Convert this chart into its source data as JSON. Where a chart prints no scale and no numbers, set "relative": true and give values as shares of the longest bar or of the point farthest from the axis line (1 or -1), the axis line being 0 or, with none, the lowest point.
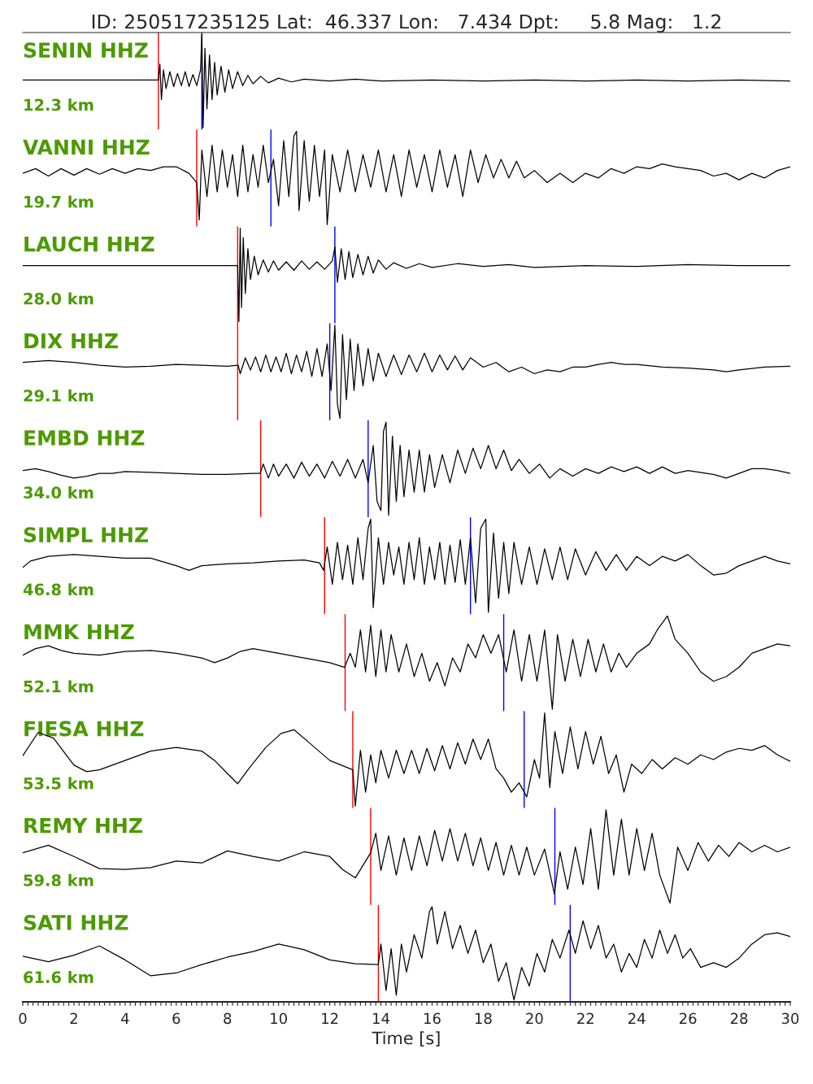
{
  "chart_data": [
    {
      "type": "line",
      "title": "ID: 250517235125 Lat:  46.337 Lon:   7.434 Dpt:     5.8 Mag:   1.2",
      "relative": true,
      "color": "#000000",
      "xlim": [
        0,
        30
      ],
      "tick_labels": false,
      "annotations": [
        "SENIN HHZ",
        "12.3 km"
      ],
      "ref_lines": [
        {
          "axis": "x",
          "value": 5.3,
          "color": "#ff0000"
        },
        {
          "axis": "x",
          "value": 7.0,
          "color": "#0000ff"
        }
      ],
      "x": [
        0,
        5.3,
        5.36,
        5.42,
        5.5,
        5.6,
        5.75,
        5.9,
        6.05,
        6.2,
        6.35,
        6.5,
        6.65,
        6.8,
        6.95,
        7.0,
        7.05,
        7.12,
        7.2,
        7.3,
        7.4,
        7.5,
        7.6,
        7.75,
        7.9,
        8.05,
        8.2,
        8.4,
        8.6,
        8.8,
        9.0,
        9.3,
        9.6,
        10,
        10.5,
        11,
        12,
        13,
        14,
        16,
        18,
        20,
        22,
        24,
        26,
        28,
        30
      ],
      "values": [
        0.51,
        0.51,
        0.68,
        0.3,
        0.62,
        0.42,
        0.6,
        0.44,
        0.58,
        0.45,
        0.6,
        0.44,
        0.57,
        0.45,
        0.62,
        1.0,
        0.0,
        0.85,
        0.2,
        0.78,
        0.3,
        0.7,
        0.35,
        0.66,
        0.38,
        0.62,
        0.42,
        0.6,
        0.45,
        0.56,
        0.47,
        0.55,
        0.48,
        0.53,
        0.49,
        0.52,
        0.5,
        0.52,
        0.5,
        0.51,
        0.5,
        0.51,
        0.5,
        0.51,
        0.5,
        0.51,
        0.5
      ]
    },
    {
      "type": "line",
      "relative": true,
      "color": "#000000",
      "xlim": [
        0,
        30
      ],
      "tick_labels": false,
      "annotations": [
        "VANNI HHZ",
        "19.7 km"
      ],
      "ref_lines": [
        {
          "axis": "x",
          "value": 6.8,
          "color": "#ff0000"
        },
        {
          "axis": "x",
          "value": 9.7,
          "color": "#0000ff"
        }
      ],
      "x": [
        0,
        0.5,
        1,
        1.5,
        2,
        2.5,
        3,
        3.5,
        4,
        4.5,
        5,
        5.5,
        6,
        6.5,
        6.8,
        6.9,
        7.0,
        7.2,
        7.4,
        7.6,
        7.8,
        8.0,
        8.2,
        8.4,
        8.6,
        8.8,
        9.0,
        9.2,
        9.4,
        9.6,
        9.8,
        10.0,
        10.2,
        10.4,
        10.6,
        10.7,
        10.8,
        11.0,
        11.2,
        11.4,
        11.6,
        11.8,
        11.9,
        12.1,
        12.4,
        12.7,
        13.0,
        13.3,
        13.6,
        13.9,
        14.2,
        14.5,
        14.8,
        15.1,
        15.4,
        15.7,
        16.0,
        16.3,
        16.6,
        16.9,
        17.2,
        17.5,
        17.8,
        18.1,
        18.4,
        18.7,
        19,
        19.3,
        19.6,
        20,
        20.5,
        21,
        21.5,
        22,
        22.5,
        23,
        23.5,
        24,
        24.5,
        25,
        25.5,
        26,
        26.5,
        27,
        27.5,
        28,
        28.5,
        29,
        29.5,
        30
      ],
      "values": [
        0.55,
        0.6,
        0.52,
        0.6,
        0.53,
        0.6,
        0.54,
        0.6,
        0.55,
        0.6,
        0.58,
        0.62,
        0.62,
        0.55,
        0.45,
        0.05,
        0.8,
        0.3,
        0.85,
        0.35,
        0.8,
        0.4,
        0.75,
        0.3,
        0.85,
        0.35,
        0.75,
        0.4,
        0.85,
        0.45,
        0.7,
        0.2,
        0.9,
        0.3,
        0.95,
        1.0,
        0.15,
        0.9,
        0.25,
        0.85,
        0.3,
        0.8,
        0.0,
        0.75,
        0.35,
        0.8,
        0.35,
        0.75,
        0.4,
        0.8,
        0.35,
        0.75,
        0.3,
        0.8,
        0.4,
        0.75,
        0.35,
        0.8,
        0.4,
        0.75,
        0.3,
        0.8,
        0.45,
        0.75,
        0.5,
        0.7,
        0.5,
        0.68,
        0.5,
        0.58,
        0.45,
        0.55,
        0.45,
        0.55,
        0.5,
        0.6,
        0.55,
        0.62,
        0.6,
        0.65,
        0.62,
        0.6,
        0.58,
        0.52,
        0.55,
        0.48,
        0.55,
        0.5,
        0.58,
        0.62
      ]
    },
    {
      "type": "line",
      "relative": true,
      "color": "#000000",
      "xlim": [
        0,
        30
      ],
      "tick_labels": false,
      "annotations": [
        "LAUCH HHZ",
        "28.0 km"
      ],
      "ref_lines": [
        {
          "axis": "x",
          "value": 8.4,
          "color": "#ff0000"
        },
        {
          "axis": "x",
          "value": 12.2,
          "color": "#0000ff"
        }
      ],
      "x": [
        0,
        8.4,
        8.45,
        8.5,
        8.55,
        8.62,
        8.7,
        8.8,
        8.9,
        9.05,
        9.2,
        9.4,
        9.6,
        9.8,
        10,
        10.3,
        10.6,
        10.9,
        11.2,
        11.5,
        11.8,
        12.1,
        12.2,
        12.3,
        12.45,
        12.6,
        12.75,
        12.9,
        13.1,
        13.3,
        13.5,
        13.7,
        13.9,
        14.2,
        14.5,
        15,
        15.5,
        16,
        17,
        18,
        19,
        20,
        22,
        24,
        26,
        28,
        30
      ],
      "values": [
        0.6,
        0.6,
        0.0,
        1.0,
        0.15,
        0.9,
        0.3,
        0.78,
        0.45,
        0.7,
        0.5,
        0.66,
        0.53,
        0.65,
        0.55,
        0.64,
        0.55,
        0.65,
        0.56,
        0.64,
        0.56,
        0.65,
        0.8,
        0.42,
        0.78,
        0.45,
        0.75,
        0.47,
        0.72,
        0.5,
        0.7,
        0.52,
        0.66,
        0.56,
        0.63,
        0.57,
        0.62,
        0.58,
        0.62,
        0.59,
        0.61,
        0.58,
        0.6,
        0.59,
        0.61,
        0.6,
        0.6
      ]
    },
    {
      "type": "line",
      "relative": true,
      "color": "#000000",
      "xlim": [
        0,
        30
      ],
      "tick_labels": false,
      "annotations": [
        "DIX HHZ",
        "29.1 km"
      ],
      "ref_lines": [
        {
          "axis": "x",
          "value": 8.4,
          "color": "#ff0000"
        },
        {
          "axis": "x",
          "value": 12.0,
          "color": "#0000ff"
        }
      ],
      "x": [
        0,
        1,
        2,
        3,
        4,
        5,
        6,
        7,
        8,
        8.42,
        8.5,
        8.7,
        8.9,
        9.1,
        9.3,
        9.5,
        9.7,
        9.9,
        10.1,
        10.3,
        10.5,
        10.7,
        10.9,
        11.1,
        11.3,
        11.5,
        11.7,
        11.9,
        12.05,
        12.2,
        12.3,
        12.4,
        12.5,
        12.65,
        12.8,
        12.95,
        13.1,
        13.3,
        13.5,
        13.7,
        13.9,
        14.2,
        14.5,
        14.8,
        15.1,
        15.4,
        15.7,
        16,
        16.3,
        16.6,
        16.9,
        17.2,
        17.5,
        18,
        18.5,
        19,
        19.5,
        20,
        20.5,
        21,
        21.5,
        22,
        22.5,
        23,
        23.5,
        24,
        25,
        26,
        27,
        27.5,
        28,
        29,
        30
      ],
      "values": [
        0.6,
        0.62,
        0.6,
        0.57,
        0.55,
        0.56,
        0.58,
        0.57,
        0.56,
        0.57,
        0.48,
        0.65,
        0.52,
        0.66,
        0.5,
        0.68,
        0.5,
        0.66,
        0.5,
        0.7,
        0.48,
        0.68,
        0.5,
        0.72,
        0.45,
        0.75,
        0.45,
        0.8,
        0.3,
        1.0,
        0.15,
        0.0,
        0.9,
        0.2,
        0.85,
        0.3,
        0.8,
        0.35,
        0.75,
        0.4,
        0.7,
        0.45,
        0.68,
        0.47,
        0.68,
        0.5,
        0.7,
        0.5,
        0.68,
        0.52,
        0.67,
        0.52,
        0.65,
        0.55,
        0.6,
        0.5,
        0.55,
        0.48,
        0.52,
        0.5,
        0.55,
        0.55,
        0.58,
        0.6,
        0.58,
        0.58,
        0.55,
        0.54,
        0.52,
        0.5,
        0.52,
        0.55,
        0.56
      ]
    },
    {
      "type": "line",
      "relative": true,
      "color": "#000000",
      "xlim": [
        0,
        30
      ],
      "tick_labels": false,
      "annotations": [
        "EMBD HHZ",
        "34.0 km"
      ],
      "ref_lines": [
        {
          "axis": "x",
          "value": 9.3,
          "color": "#ff0000"
        },
        {
          "axis": "x",
          "value": 13.5,
          "color": "#0000ff"
        }
      ],
      "x": [
        0,
        0.5,
        1,
        1.5,
        2,
        2.5,
        3,
        3.5,
        4,
        5,
        6,
        7,
        8,
        9,
        9.28,
        9.4,
        9.6,
        9.8,
        10,
        10.3,
        10.6,
        10.9,
        11.2,
        11.5,
        11.8,
        12.1,
        12.4,
        12.7,
        13.0,
        13.3,
        13.5,
        13.7,
        13.85,
        14.0,
        14.1,
        14.2,
        14.3,
        14.45,
        14.6,
        14.75,
        14.9,
        15.1,
        15.3,
        15.5,
        15.7,
        15.9,
        16.1,
        16.4,
        16.7,
        17.0,
        17.3,
        17.6,
        17.9,
        18.2,
        18.5,
        18.8,
        19.1,
        19.4,
        19.8,
        20.2,
        20.6,
        21,
        21.5,
        22,
        22.5,
        23,
        23.5,
        24,
        24.5,
        25,
        25.5,
        26,
        27,
        27.5,
        28,
        28.5,
        29,
        29.5,
        30
      ],
      "values": [
        0.48,
        0.5,
        0.47,
        0.43,
        0.4,
        0.42,
        0.45,
        0.45,
        0.47,
        0.46,
        0.45,
        0.44,
        0.44,
        0.45,
        0.45,
        0.55,
        0.4,
        0.55,
        0.42,
        0.55,
        0.4,
        0.57,
        0.42,
        0.55,
        0.4,
        0.58,
        0.42,
        0.6,
        0.4,
        0.6,
        0.35,
        0.75,
        0.15,
        0.05,
        0.9,
        1.0,
        0.0,
        0.85,
        0.15,
        0.75,
        0.2,
        0.7,
        0.25,
        0.7,
        0.25,
        0.65,
        0.3,
        0.65,
        0.35,
        0.7,
        0.45,
        0.72,
        0.5,
        0.75,
        0.5,
        0.7,
        0.48,
        0.6,
        0.45,
        0.55,
        0.4,
        0.5,
        0.42,
        0.5,
        0.45,
        0.52,
        0.47,
        0.52,
        0.45,
        0.52,
        0.45,
        0.48,
        0.44,
        0.4,
        0.45,
        0.5,
        0.5,
        0.48,
        0.45
      ]
    },
    {
      "type": "line",
      "relative": true,
      "color": "#000000",
      "xlim": [
        0,
        30
      ],
      "tick_labels": false,
      "annotations": [
        "SIMPL HHZ",
        "46.8 km"
      ],
      "ref_lines": [
        {
          "axis": "x",
          "value": 11.8,
          "color": "#ff0000"
        },
        {
          "axis": "x",
          "value": 17.5,
          "color": "#0000ff"
        }
      ],
      "x": [
        0,
        0.3,
        1,
        2,
        3,
        4,
        5,
        6,
        6.5,
        7,
        8,
        9,
        10,
        11,
        11.6,
        11.76,
        11.9,
        12.1,
        12.3,
        12.5,
        12.7,
        12.9,
        13.1,
        13.3,
        13.5,
        13.6,
        13.7,
        13.9,
        14.1,
        14.3,
        14.5,
        14.7,
        14.9,
        15.1,
        15.3,
        15.5,
        15.7,
        15.9,
        16.1,
        16.3,
        16.5,
        16.7,
        16.9,
        17.1,
        17.3,
        17.5,
        17.7,
        17.9,
        18.1,
        18.2,
        18.4,
        18.6,
        18.8,
        19.0,
        19.2,
        19.5,
        19.8,
        20.1,
        20.4,
        20.7,
        21,
        21.3,
        21.6,
        22,
        22.4,
        22.8,
        23.2,
        23.6,
        24,
        24.5,
        25,
        25.5,
        26,
        26.5,
        27,
        27.5,
        28,
        28.5,
        29,
        29.5,
        30
      ],
      "values": [
        0.48,
        0.55,
        0.6,
        0.62,
        0.6,
        0.58,
        0.58,
        0.5,
        0.45,
        0.5,
        0.52,
        0.53,
        0.55,
        0.56,
        0.53,
        0.45,
        0.7,
        0.3,
        0.75,
        0.35,
        0.72,
        0.3,
        0.8,
        0.35,
        0.9,
        1.0,
        0.05,
        0.8,
        0.3,
        0.75,
        0.4,
        0.7,
        0.3,
        0.75,
        0.35,
        0.8,
        0.3,
        0.7,
        0.35,
        0.75,
        0.3,
        0.72,
        0.32,
        0.78,
        0.3,
        0.8,
        0.1,
        0.9,
        1.0,
        0.0,
        0.85,
        0.15,
        0.75,
        0.2,
        0.75,
        0.3,
        0.7,
        0.3,
        0.68,
        0.35,
        0.7,
        0.35,
        0.68,
        0.4,
        0.65,
        0.45,
        0.62,
        0.45,
        0.6,
        0.5,
        0.6,
        0.55,
        0.62,
        0.5,
        0.4,
        0.42,
        0.5,
        0.55,
        0.6,
        0.55,
        0.52
      ]
    },
    {
      "type": "line",
      "relative": true,
      "color": "#000000",
      "xlim": [
        0,
        30
      ],
      "tick_labels": false,
      "annotations": [
        "MMK HHZ",
        "52.1 km"
      ],
      "ref_lines": [
        {
          "axis": "x",
          "value": 12.6,
          "color": "#ff0000"
        },
        {
          "axis": "x",
          "value": 18.8,
          "color": "#0000ff"
        }
      ],
      "x": [
        0,
        0.5,
        1,
        1.5,
        2,
        3,
        4,
        5,
        6,
        7,
        7.5,
        8,
        8.5,
        9,
        10,
        11,
        12,
        12.58,
        12.8,
        13,
        13.2,
        13.4,
        13.6,
        13.8,
        14,
        14.2,
        14.4,
        14.7,
        15,
        15.3,
        15.6,
        15.9,
        16.2,
        16.5,
        16.8,
        17.1,
        17.4,
        17.7,
        18,
        18.3,
        18.6,
        18.9,
        19.2,
        19.5,
        19.8,
        20.1,
        20.4,
        20.7,
        20.9,
        21.2,
        21.5,
        21.8,
        22.1,
        22.4,
        22.7,
        23,
        23.3,
        23.6,
        24,
        24.5,
        24.8,
        25.2,
        25.5,
        26,
        26.5,
        27,
        27.5,
        28,
        28.5,
        29,
        29.5,
        30
      ],
      "values": [
        0.58,
        0.65,
        0.68,
        0.63,
        0.6,
        0.58,
        0.62,
        0.63,
        0.6,
        0.55,
        0.5,
        0.55,
        0.62,
        0.65,
        0.6,
        0.55,
        0.5,
        0.45,
        0.6,
        0.45,
        0.85,
        0.4,
        0.9,
        0.35,
        0.85,
        0.4,
        0.8,
        0.4,
        0.7,
        0.35,
        0.6,
        0.3,
        0.5,
        0.25,
        0.55,
        0.4,
        0.7,
        0.55,
        0.8,
        0.6,
        0.8,
        0.4,
        0.85,
        0.3,
        0.8,
        0.3,
        0.85,
        0.0,
        0.8,
        0.3,
        0.75,
        0.35,
        0.75,
        0.4,
        0.7,
        0.4,
        0.6,
        0.45,
        0.6,
        0.7,
        0.85,
        1.0,
        0.75,
        0.6,
        0.4,
        0.3,
        0.35,
        0.45,
        0.6,
        0.65,
        0.7,
        0.68
      ]
    },
    {
      "type": "line",
      "relative": true,
      "color": "#000000",
      "xlim": [
        0,
        30
      ],
      "tick_labels": false,
      "annotations": [
        "FIESA HHZ",
        "53.5 km"
      ],
      "ref_lines": [
        {
          "axis": "x",
          "value": 12.9,
          "color": "#ff0000"
        },
        {
          "axis": "x",
          "value": 19.6,
          "color": "#0000ff"
        }
      ],
      "x": [
        0,
        0.6,
        1.2,
        2,
        2.5,
        3,
        4,
        5,
        6,
        7,
        7.5,
        8.0,
        8.4,
        8.8,
        9.5,
        10.1,
        10.6,
        11.2,
        12,
        12.9,
        13.0,
        13.2,
        13.4,
        13.6,
        13.8,
        14.0,
        14.3,
        14.6,
        14.9,
        15.2,
        15.5,
        15.8,
        16.1,
        16.4,
        16.7,
        17,
        17.3,
        17.6,
        17.9,
        18.2,
        18.5,
        18.8,
        19.1,
        19.4,
        19.7,
        20,
        20.2,
        20.4,
        20.6,
        20.8,
        21.1,
        21.4,
        21.7,
        22,
        22.3,
        22.6,
        22.9,
        23.2,
        23.5,
        23.8,
        24.2,
        24.6,
        25,
        25.5,
        26,
        26.5,
        27,
        27.5,
        28,
        28.5,
        29,
        29.5,
        30
      ],
      "values": [
        0.54,
        0.79,
        0.73,
        0.44,
        0.37,
        0.39,
        0.49,
        0.59,
        0.63,
        0.59,
        0.49,
        0.35,
        0.24,
        0.39,
        0.63,
        0.78,
        0.82,
        0.68,
        0.49,
        0.39,
        0.0,
        0.6,
        0.15,
        0.55,
        0.25,
        0.6,
        0.3,
        0.6,
        0.35,
        0.6,
        0.35,
        0.62,
        0.38,
        0.65,
        0.4,
        0.68,
        0.45,
        0.72,
        0.5,
        0.72,
        0.4,
        0.3,
        0.15,
        0.25,
        0.1,
        0.5,
        0.3,
        1.0,
        0.2,
        0.8,
        0.35,
        0.85,
        0.4,
        0.8,
        0.45,
        0.75,
        0.35,
        0.55,
        0.15,
        0.45,
        0.35,
        0.5,
        0.4,
        0.52,
        0.45,
        0.55,
        0.5,
        0.58,
        0.62,
        0.6,
        0.65,
        0.55,
        0.48
      ]
    },
    {
      "type": "line",
      "relative": true,
      "color": "#000000",
      "xlim": [
        0,
        30
      ],
      "tick_labels": false,
      "annotations": [
        "REMY HHZ",
        "59.8 km"
      ],
      "ref_lines": [
        {
          "axis": "x",
          "value": 13.6,
          "color": "#ff0000"
        },
        {
          "axis": "x",
          "value": 20.8,
          "color": "#0000ff"
        }
      ],
      "x": [
        0,
        1,
        2,
        3,
        4,
        5,
        6,
        7,
        8,
        9,
        10,
        11,
        12,
        12.5,
        13,
        13.6,
        13.8,
        14.0,
        14.3,
        14.6,
        14.9,
        15.2,
        15.5,
        15.8,
        16.1,
        16.4,
        16.7,
        17,
        17.3,
        17.6,
        17.9,
        18.2,
        18.5,
        18.8,
        19.1,
        19.4,
        19.7,
        20,
        20.4,
        20.78,
        21,
        21.3,
        21.6,
        21.9,
        22.2,
        22.5,
        22.8,
        23.1,
        23.4,
        23.7,
        24,
        24.3,
        24.6,
        24.9,
        25.3,
        25.6,
        26,
        26.4,
        26.8,
        27.2,
        27.6,
        28,
        28.5,
        29,
        29.5,
        30
      ],
      "values": [
        0.54,
        0.62,
        0.5,
        0.37,
        0.36,
        0.38,
        0.45,
        0.43,
        0.56,
        0.5,
        0.45,
        0.55,
        0.5,
        0.36,
        0.27,
        0.54,
        0.75,
        0.35,
        0.72,
        0.3,
        0.7,
        0.35,
        0.72,
        0.4,
        0.78,
        0.45,
        0.8,
        0.45,
        0.75,
        0.4,
        0.7,
        0.35,
        0.65,
        0.3,
        0.62,
        0.3,
        0.6,
        0.3,
        0.58,
        0.1,
        0.55,
        0.15,
        0.6,
        0.2,
        0.8,
        0.15,
        1.0,
        0.3,
        0.9,
        0.3,
        0.8,
        0.35,
        0.75,
        0.3,
        0.0,
        0.6,
        0.35,
        0.65,
        0.45,
        0.62,
        0.5,
        0.65,
        0.55,
        0.62,
        0.55,
        0.6
      ]
    },
    {
      "type": "line",
      "relative": true,
      "color": "#000000",
      "xlim": [
        0,
        30
      ],
      "tick_labels": "x",
      "xlabel": "Time [s]",
      "annotations": [
        "SATI HHZ",
        "61.6 km"
      ],
      "ref_lines": [
        {
          "axis": "x",
          "value": 13.9,
          "color": "#ff0000"
        },
        {
          "axis": "x",
          "value": 21.4,
          "color": "#0000ff"
        }
      ],
      "x": [
        0,
        1,
        2,
        3,
        4,
        5,
        6,
        7,
        8,
        9,
        10,
        11,
        12,
        13,
        13.9,
        14.0,
        14.2,
        14.4,
        14.6,
        14.8,
        15.0,
        15.3,
        15.6,
        15.9,
        16.0,
        16.2,
        16.5,
        16.8,
        17.1,
        17.4,
        17.7,
        18,
        18.3,
        18.6,
        18.9,
        19.2,
        19.5,
        19.8,
        20.1,
        20.4,
        20.7,
        21,
        21.35,
        21.6,
        21.9,
        22.2,
        22.5,
        22.8,
        23.1,
        23.4,
        23.7,
        24,
        24.3,
        24.6,
        24.9,
        25.2,
        25.5,
        25.8,
        26.1,
        26.5,
        27,
        27.5,
        28,
        28.5,
        29,
        29.5,
        30
      ],
      "values": [
        0.47,
        0.41,
        0.48,
        0.58,
        0.43,
        0.26,
        0.29,
        0.38,
        0.46,
        0.52,
        0.6,
        0.54,
        0.43,
        0.39,
        0.38,
        0.6,
        0.1,
        0.55,
        0.05,
        0.6,
        0.3,
        0.7,
        0.45,
        0.95,
        1.0,
        0.6,
        0.95,
        0.55,
        0.8,
        0.5,
        0.75,
        0.4,
        0.6,
        0.2,
        0.4,
        0.0,
        0.35,
        0.15,
        0.5,
        0.3,
        0.65,
        0.45,
        0.75,
        0.5,
        0.85,
        0.55,
        0.8,
        0.45,
        0.6,
        0.3,
        0.5,
        0.35,
        0.65,
        0.45,
        0.75,
        0.5,
        0.7,
        0.45,
        0.55,
        0.35,
        0.4,
        0.35,
        0.45,
        0.6,
        0.7,
        0.72,
        0.68
      ],
      "xticks": [
        0,
        {
          "value": 0.2,
          "label": null
        },
        {
          "value": 0.4,
          "label": null
        },
        {
          "value": 0.6,
          "label": null
        },
        {
          "value": 0.8,
          "label": null
        },
        {
          "value": 1,
          "label": null
        },
        {
          "value": 1.2,
          "label": null
        },
        {
          "value": 1.4,
          "label": null
        },
        {
          "value": 1.6,
          "label": null
        },
        {
          "value": 1.8,
          "label": null
        },
        2,
        {
          "value": 2.2,
          "label": null
        },
        {
          "value": 2.4,
          "label": null
        },
        {
          "value": 2.6,
          "label": null
        },
        {
          "value": 2.8,
          "label": null
        },
        {
          "value": 3,
          "label": null
        },
        {
          "value": 3.2,
          "label": null
        },
        {
          "value": 3.4,
          "label": null
        },
        {
          "value": 3.6,
          "label": null
        },
        {
          "value": 3.8,
          "label": null
        },
        4,
        {
          "value": 4.2,
          "label": null
        },
        {
          "value": 4.4,
          "label": null
        },
        {
          "value": 4.6,
          "label": null
        },
        {
          "value": 4.8,
          "label": null
        },
        {
          "value": 5,
          "label": null
        },
        {
          "value": 5.2,
          "label": null
        },
        {
          "value": 5.4,
          "label": null
        },
        {
          "value": 5.6,
          "label": null
        },
        {
          "value": 5.8,
          "label": null
        },
        6,
        {
          "value": 6.2,
          "label": null
        },
        {
          "value": 6.4,
          "label": null
        },
        {
          "value": 6.6,
          "label": null
        },
        {
          "value": 6.8,
          "label": null
        },
        {
          "value": 7,
          "label": null
        },
        {
          "value": 7.2,
          "label": null
        },
        {
          "value": 7.4,
          "label": null
        },
        {
          "value": 7.6,
          "label": null
        },
        {
          "value": 7.8,
          "label": null
        },
        8,
        {
          "value": 8.2,
          "label": null
        },
        {
          "value": 8.4,
          "label": null
        },
        {
          "value": 8.6,
          "label": null
        },
        {
          "value": 8.8,
          "label": null
        },
        {
          "value": 9,
          "label": null
        },
        {
          "value": 9.2,
          "label": null
        },
        {
          "value": 9.4,
          "label": null
        },
        {
          "value": 9.6,
          "label": null
        },
        {
          "value": 9.8,
          "label": null
        },
        10,
        {
          "value": 10.2,
          "label": null
        },
        {
          "value": 10.4,
          "label": null
        },
        {
          "value": 10.6,
          "label": null
        },
        {
          "value": 10.8,
          "label": null
        },
        {
          "value": 11,
          "label": null
        },
        {
          "value": 11.2,
          "label": null
        },
        {
          "value": 11.4,
          "label": null
        },
        {
          "value": 11.6,
          "label": null
        },
        {
          "value": 11.8,
          "label": null
        },
        12,
        {
          "value": 12.2,
          "label": null
        },
        {
          "value": 12.4,
          "label": null
        },
        {
          "value": 12.6,
          "label": null
        },
        {
          "value": 12.8,
          "label": null
        },
        {
          "value": 13,
          "label": null
        },
        {
          "value": 13.2,
          "label": null
        },
        {
          "value": 13.4,
          "label": null
        },
        {
          "value": 13.6,
          "label": null
        },
        {
          "value": 13.8,
          "label": null
        },
        14,
        {
          "value": 14.2,
          "label": null
        },
        {
          "value": 14.4,
          "label": null
        },
        {
          "value": 14.6,
          "label": null
        },
        {
          "value": 14.8,
          "label": null
        },
        {
          "value": 15,
          "label": null
        },
        {
          "value": 15.2,
          "label": null
        },
        {
          "value": 15.4,
          "label": null
        },
        {
          "value": 15.6,
          "label": null
        },
        {
          "value": 15.8,
          "label": null
        },
        16,
        {
          "value": 16.2,
          "label": null
        },
        {
          "value": 16.4,
          "label": null
        },
        {
          "value": 16.6,
          "label": null
        },
        {
          "value": 16.8,
          "label": null
        },
        {
          "value": 17,
          "label": null
        },
        {
          "value": 17.2,
          "label": null
        },
        {
          "value": 17.4,
          "label": null
        },
        {
          "value": 17.6,
          "label": null
        },
        {
          "value": 17.8,
          "label": null
        },
        18,
        {
          "value": 18.2,
          "label": null
        },
        {
          "value": 18.4,
          "label": null
        },
        {
          "value": 18.6,
          "label": null
        },
        {
          "value": 18.8,
          "label": null
        },
        {
          "value": 19,
          "label": null
        },
        {
          "value": 19.2,
          "label": null
        },
        {
          "value": 19.4,
          "label": null
        },
        {
          "value": 19.6,
          "label": null
        },
        {
          "value": 19.8,
          "label": null
        },
        20,
        {
          "value": 20.2,
          "label": null
        },
        {
          "value": 20.4,
          "label": null
        },
        {
          "value": 20.6,
          "label": null
        },
        {
          "value": 20.8,
          "label": null
        },
        {
          "value": 21,
          "label": null
        },
        {
          "value": 21.2,
          "label": null
        },
        {
          "value": 21.4,
          "label": null
        },
        {
          "value": 21.6,
          "label": null
        },
        {
          "value": 21.8,
          "label": null
        },
        22,
        {
          "value": 22.2,
          "label": null
        },
        {
          "value": 22.4,
          "label": null
        },
        {
          "value": 22.6,
          "label": null
        },
        {
          "value": 22.8,
          "label": null
        },
        {
          "value": 23,
          "label": null
        },
        {
          "value": 23.2,
          "label": null
        },
        {
          "value": 23.4,
          "label": null
        },
        {
          "value": 23.6,
          "label": null
        },
        {
          "value": 23.8,
          "label": null
        },
        24,
        {
          "value": 24.2,
          "label": null
        },
        {
          "value": 24.4,
          "label": null
        },
        {
          "value": 24.6,
          "label": null
        },
        {
          "value": 24.8,
          "label": null
        },
        {
          "value": 25,
          "label": null
        },
        {
          "value": 25.2,
          "label": null
        },
        {
          "value": 25.4,
          "label": null
        },
        {
          "value": 25.6,
          "label": null
        },
        {
          "value": 25.8,
          "label": null
        },
        26,
        {
          "value": 26.2,
          "label": null
        },
        {
          "value": 26.4,
          "label": null
        },
        {
          "value": 26.6,
          "label": null
        },
        {
          "value": 26.8,
          "label": null
        },
        {
          "value": 27,
          "label": null
        },
        {
          "value": 27.2,
          "label": null
        },
        {
          "value": 27.4,
          "label": null
        },
        {
          "value": 27.6,
          "label": null
        },
        {
          "value": 27.8,
          "label": null
        },
        28,
        {
          "value": 28.2,
          "label": null
        },
        {
          "value": 28.4,
          "label": null
        },
        {
          "value": 28.6,
          "label": null
        },
        {
          "value": 28.8,
          "label": null
        },
        {
          "value": 29,
          "label": null
        },
        {
          "value": 29.2,
          "label": null
        },
        {
          "value": 29.4,
          "label": null
        },
        {
          "value": 29.6,
          "label": null
        },
        {
          "value": 29.8,
          "label": null
        },
        30
      ]
    }
  ]
}
